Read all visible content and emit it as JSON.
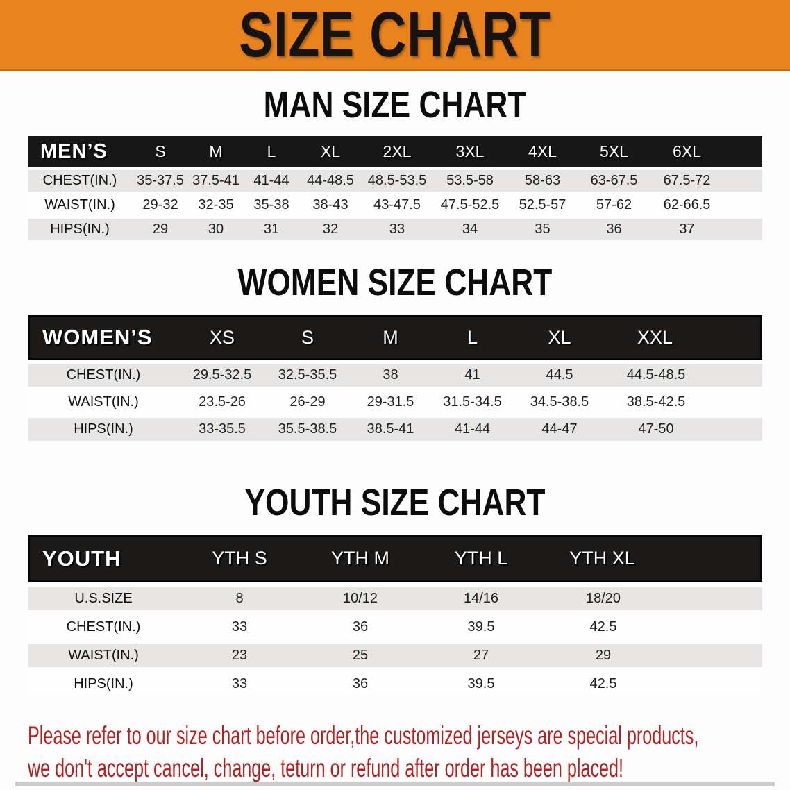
{
  "banner": {
    "title": "SIZE CHART"
  },
  "colors": {
    "banner_bg": "#e8831d",
    "banner_text": "#171310",
    "header_bg": "#171717",
    "header_text": "#ffffff",
    "row_alt_bg": "#e7e6e4",
    "disclaimer_red": "#b32222"
  },
  "sections": [
    {
      "title": "MAN SIZE CHART",
      "header_label": "MEN’S",
      "columns": [
        "S",
        "M",
        "L",
        "XL",
        "2XL",
        "3XL",
        "4XL",
        "5XL",
        "6XL"
      ],
      "rows": [
        {
          "label": "CHEST(IN.)",
          "values": [
            "35-37.5",
            "37.5-41",
            "41-44",
            "44-48.5",
            "48.5-53.5",
            "53.5-58",
            "58-63",
            "63-67.5",
            "67.5-72"
          ]
        },
        {
          "label": "WAIST(IN.)",
          "values": [
            "29-32",
            "32-35",
            "35-38",
            "38-43",
            "43-47.5",
            "47.5-52.5",
            "52.5-57",
            "57-62",
            "62-66.5"
          ]
        },
        {
          "label": "HIPS(IN.)",
          "values": [
            "29",
            "30",
            "31",
            "32",
            "33",
            "34",
            "35",
            "36",
            "37"
          ]
        }
      ]
    },
    {
      "title": "WOMEN SIZE CHART",
      "header_label": "WOMEN’S",
      "columns": [
        "XS",
        "S",
        "M",
        "L",
        "XL",
        "XXL"
      ],
      "rows": [
        {
          "label": "CHEST(IN.)",
          "values": [
            "29.5-32.5",
            "32.5-35.5",
            "38",
            "41",
            "44.5",
            "44.5-48.5"
          ]
        },
        {
          "label": "WAIST(IN.)",
          "values": [
            "23.5-26",
            "26-29",
            "29-31.5",
            "31.5-34.5",
            "34.5-38.5",
            "38.5-42.5"
          ]
        },
        {
          "label": "HIPS(IN.)",
          "values": [
            "33-35.5",
            "35.5-38.5",
            "38.5-41",
            "41-44",
            "44-47",
            "47-50"
          ]
        }
      ]
    },
    {
      "title": "YOUTH SIZE CHART",
      "header_label": "YOUTH",
      "columns": [
        "YTH S",
        "YTH M",
        "YTH L",
        "YTH XL"
      ],
      "rows": [
        {
          "label": "U.S.SIZE",
          "values": [
            "8",
            "10/12",
            "14/16",
            "18/20"
          ]
        },
        {
          "label": "CHEST(IN.)",
          "values": [
            "33",
            "36",
            "39.5",
            "42.5"
          ]
        },
        {
          "label": "WAIST(IN.)",
          "values": [
            "23",
            "25",
            "27",
            "29"
          ]
        },
        {
          "label": "HIPS(IN.)",
          "values": [
            "33",
            "36",
            "39.5",
            "42.5"
          ]
        }
      ]
    }
  ],
  "disclaimer": {
    "line1": "Please refer to our size chart before order,the customized jerseys are special products,",
    "line2": "we don't accept cancel, change, teturn or refund after order has been placed!"
  }
}
